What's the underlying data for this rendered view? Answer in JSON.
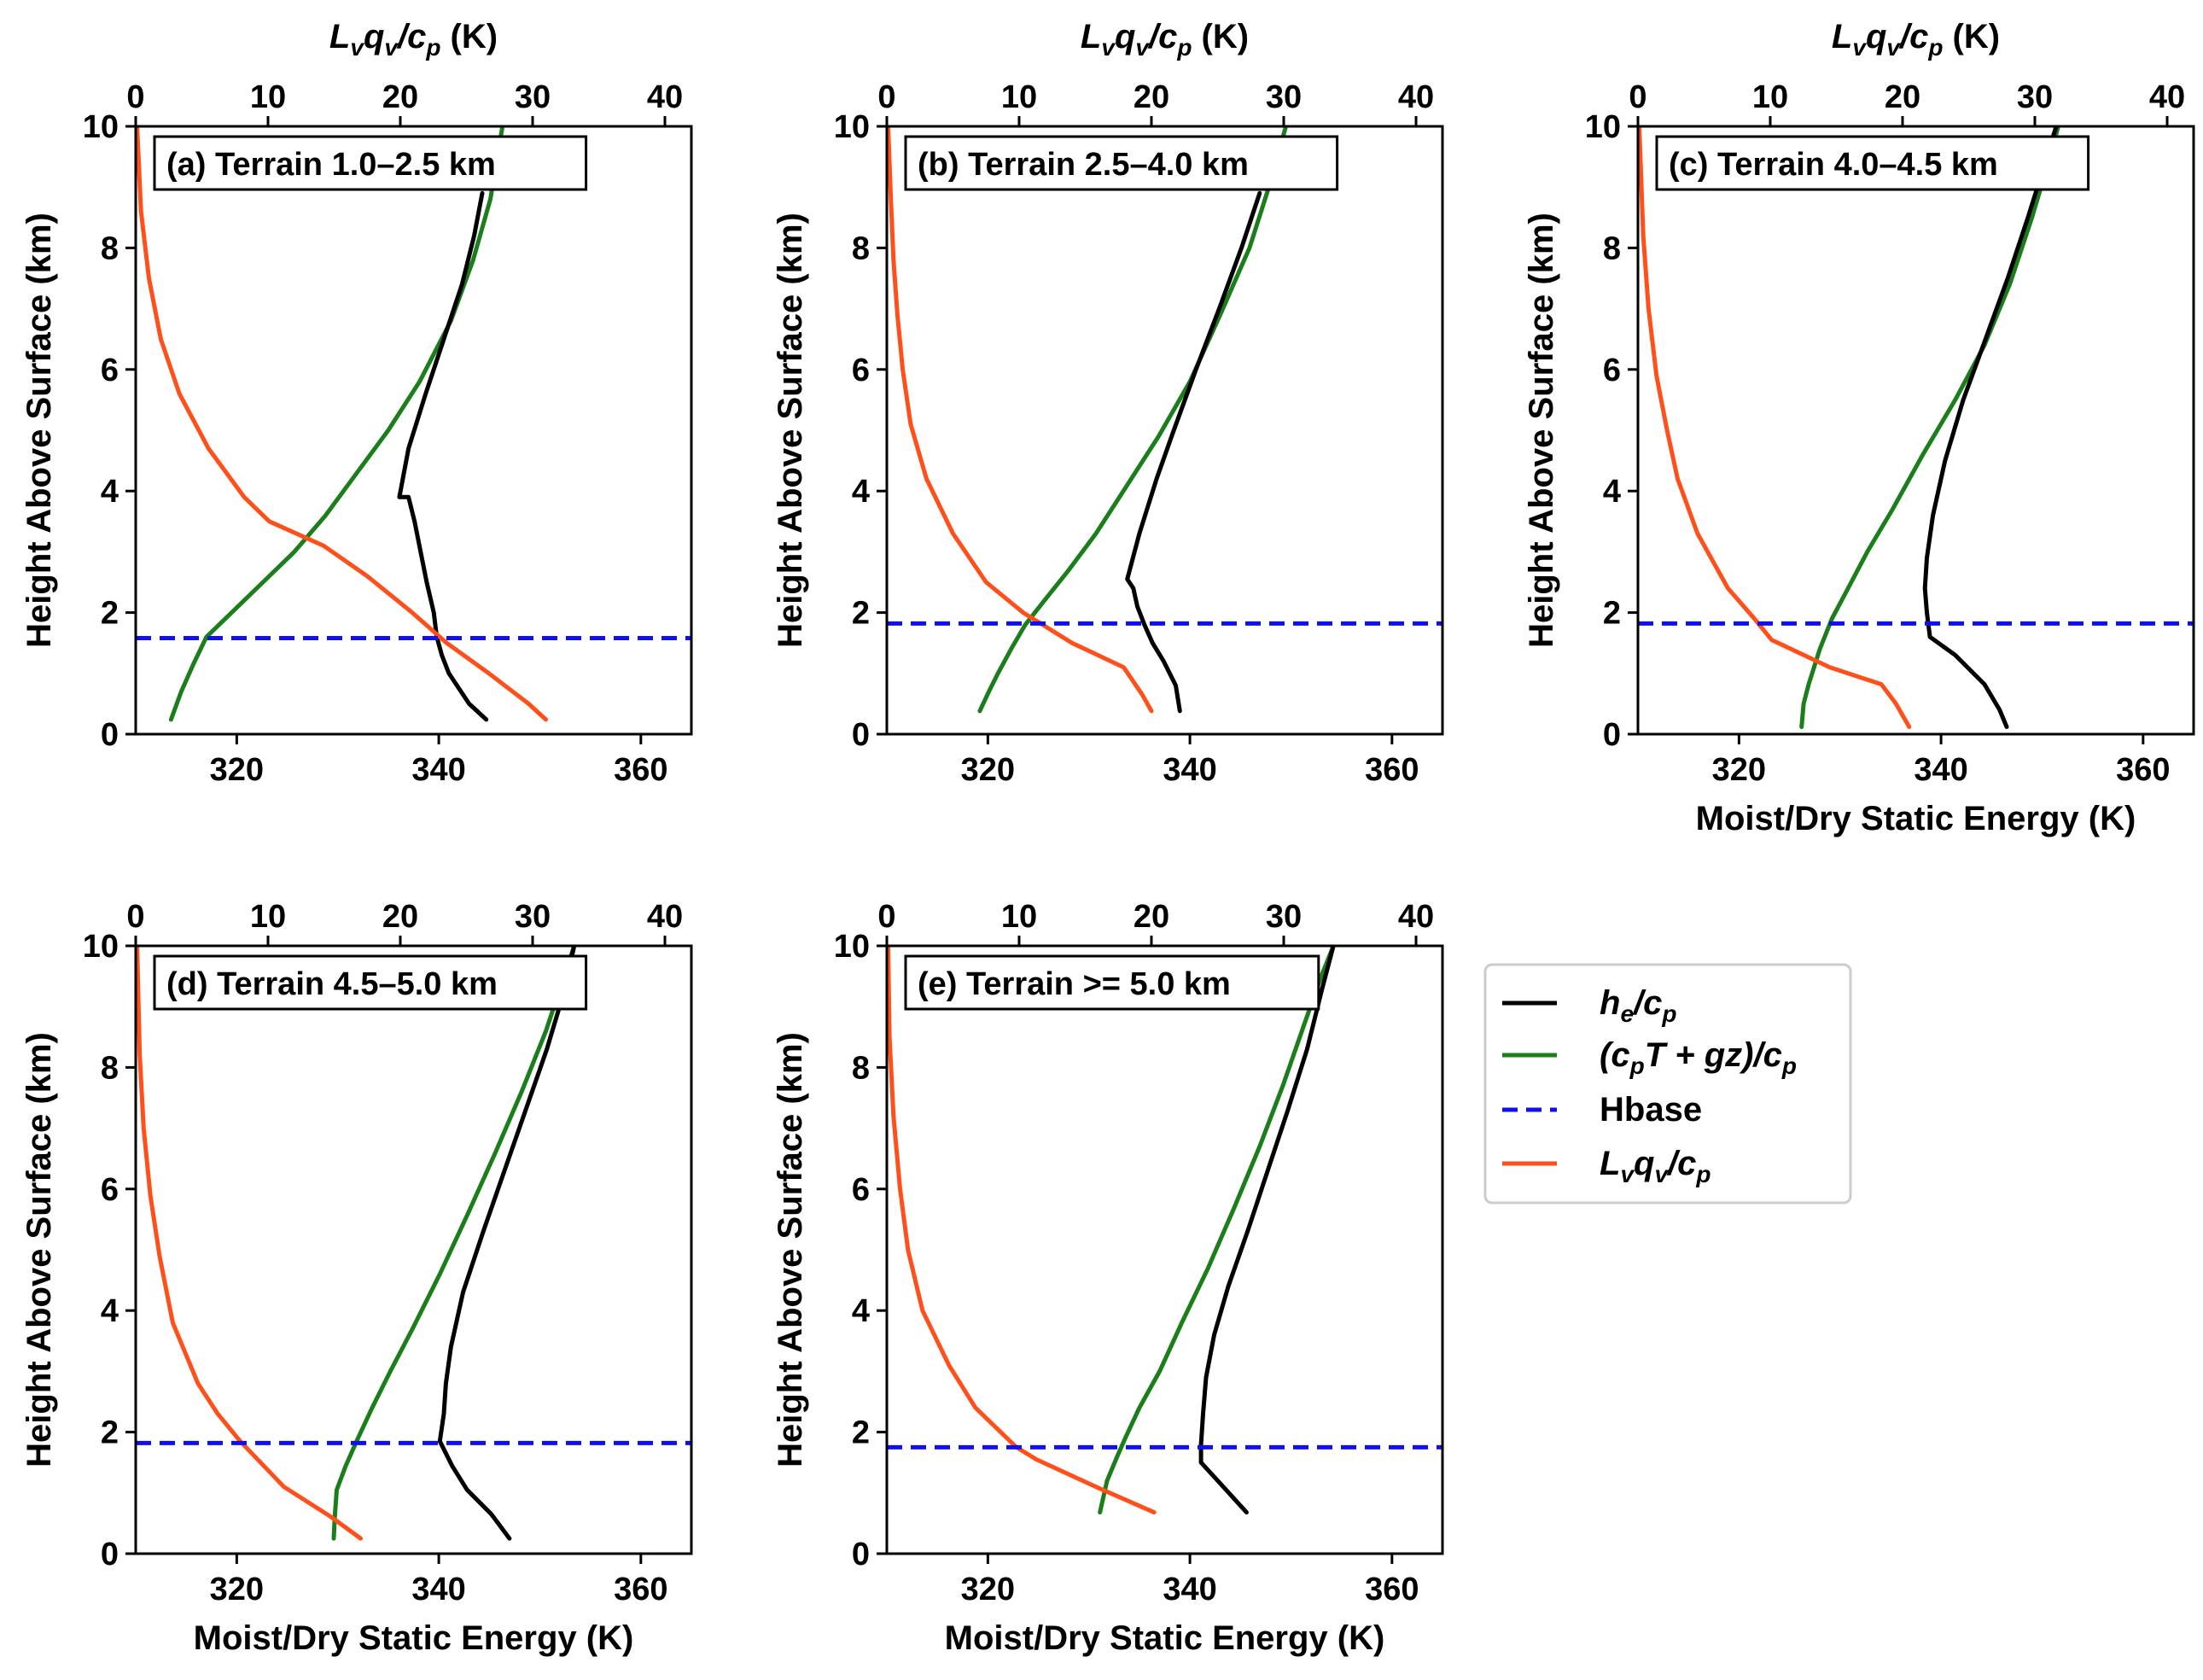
{
  "colors": {
    "he": "#000000",
    "dse": "#1a7f1a",
    "hbase": "#1010ee",
    "lvq": "#ff4f1a"
  },
  "shared_axes": {
    "xlabel": "Moist/Dry Static Energy (K)",
    "ylabel": "Height Above Surface (km)",
    "top_xlabel_main": "L",
    "top_xlabel_sub": "v",
    "top_xlabel_q": "q",
    "top_xlabel_q_sub": "v",
    "top_xlabel_div": "/c",
    "top_xlabel_div_sub": "p",
    "top_xlabel_units": " (K)",
    "xlim": [
      310,
      365
    ],
    "xticks": [
      "320",
      "340",
      "360"
    ],
    "xtick_values": [
      320,
      340,
      360
    ],
    "top_xlim": [
      0,
      42
    ],
    "top_xticks": [
      "0",
      "10",
      "20",
      "30",
      "40"
    ],
    "top_xtick_values": [
      0,
      10,
      20,
      30,
      40
    ],
    "ylim": [
      0,
      10
    ],
    "yticks": [
      "0",
      "2",
      "4",
      "6",
      "8",
      "10"
    ],
    "ytick_values": [
      0,
      2,
      4,
      6,
      8,
      10
    ]
  },
  "legend": {
    "he_a": "h",
    "he_a_sub": "e",
    "he_b": "/c",
    "he_b_sub": "p",
    "dse_a": "(c",
    "dse_a_sub": "p",
    "dse_b": "T + gz)/c",
    "dse_b_sub": "p",
    "hbase": "Hbase",
    "lvq_a": "L",
    "lvq_a_sub": "v",
    "lvq_b": "q",
    "lvq_b_sub": "v",
    "lvq_c": "/c",
    "lvq_c_sub": "p"
  },
  "chart_data": [
    {
      "type": "line",
      "title": "(a) Terrain 1.0–2.5 km",
      "show_xlabel": false,
      "hbase_km": 1.58,
      "series": [
        {
          "name": "h_e/c_p",
          "axis": "bottom",
          "x": [
            344.7,
            343,
            341,
            340.3,
            339.8,
            339.5,
            338.8,
            338.2,
            337.6,
            337,
            336.1,
            337,
            338.7,
            340.5,
            342.3,
            343.5,
            344.3
          ],
          "y": [
            0.24,
            0.5,
            1.0,
            1.3,
            1.6,
            2.0,
            2.5,
            3.0,
            3.5,
            3.9,
            3.9,
            4.7,
            5.6,
            6.5,
            7.4,
            8.2,
            8.9
          ]
        },
        {
          "name": "(c_pT+gz)/c_p",
          "axis": "bottom",
          "x": [
            313.5,
            314.5,
            315.7,
            317,
            319.5,
            322.6,
            325.7,
            328.8,
            331.9,
            335,
            338.1,
            341.2,
            343.4,
            345.1,
            346.3
          ],
          "y": [
            0.24,
            0.7,
            1.15,
            1.6,
            2.0,
            2.5,
            3.0,
            3.6,
            4.3,
            5.0,
            5.8,
            6.8,
            7.8,
            8.8,
            10.0
          ]
        },
        {
          "name": "L_vq_v/c_p",
          "axis": "top",
          "x": [
            31.0,
            29.7,
            26.7,
            23.5,
            20.9,
            17.5,
            14.2,
            10.1,
            8.2,
            5.5,
            3.3,
            1.9,
            1.0,
            0.4,
            0.1
          ],
          "y": [
            0.24,
            0.5,
            1.0,
            1.5,
            2.0,
            2.6,
            3.1,
            3.5,
            3.9,
            4.7,
            5.6,
            6.5,
            7.5,
            8.6,
            10.0
          ]
        }
      ]
    },
    {
      "type": "line",
      "title": "(b) Terrain 2.5–4.0 km",
      "show_xlabel": false,
      "hbase_km": 1.82,
      "series": [
        {
          "name": "h_e/c_p",
          "axis": "bottom",
          "x": [
            339.0,
            338.6,
            337.4,
            336.3,
            335.5,
            334.8,
            334.4,
            333.8,
            335.0,
            336.7,
            338.4,
            340.6,
            342.9,
            345.1,
            346.9
          ],
          "y": [
            0.38,
            0.8,
            1.2,
            1.5,
            1.8,
            2.1,
            2.4,
            2.55,
            3.3,
            4.2,
            5.0,
            6.0,
            7.0,
            8.0,
            8.9
          ]
        },
        {
          "name": "(c_pT+gz)/c_p",
          "axis": "bottom",
          "x": [
            319.2,
            320.1,
            321.0,
            322.3,
            323.7,
            325.6,
            328.0,
            330.7,
            333.8,
            336.9,
            340.0,
            343.0,
            345.9,
            348.2,
            349.5
          ],
          "y": [
            0.38,
            0.7,
            1.0,
            1.4,
            1.8,
            2.2,
            2.7,
            3.3,
            4.1,
            4.9,
            5.8,
            6.9,
            8.0,
            9.2,
            10.0
          ]
        },
        {
          "name": "L_vq_v/c_p",
          "axis": "top",
          "x": [
            20.0,
            19.3,
            17.9,
            14.0,
            10.3,
            7.5,
            5.0,
            3.0,
            1.8,
            1.2,
            0.8,
            0.5,
            0.3,
            0.1
          ],
          "y": [
            0.38,
            0.65,
            1.1,
            1.5,
            2.0,
            2.5,
            3.3,
            4.2,
            5.1,
            6.0,
            6.9,
            7.8,
            8.8,
            10.0
          ]
        }
      ]
    },
    {
      "type": "line",
      "title": "(c) Terrain 4.0–4.5 km",
      "show_xlabel": true,
      "hbase_km": 1.82,
      "series": [
        {
          "name": "h_e/c_p",
          "axis": "bottom",
          "x": [
            346.5,
            345.8,
            344.3,
            341.4,
            338.9,
            338.6,
            338.4,
            338.6,
            339.2,
            340.4,
            342.2,
            344.4,
            346.6,
            348.6,
            350.3,
            351.4
          ],
          "y": [
            0.12,
            0.4,
            0.82,
            1.3,
            1.6,
            2.0,
            2.4,
            2.9,
            3.6,
            4.5,
            5.5,
            6.5,
            7.5,
            8.5,
            9.4,
            10.0
          ]
        },
        {
          "name": "(c_pT+gz)/c_p",
          "axis": "bottom",
          "x": [
            326.2,
            326.4,
            326.9,
            328.0,
            329.2,
            330.8,
            332.7,
            335.2,
            338.2,
            341.4,
            344.3,
            346.8,
            349.0,
            350.8,
            351.6
          ],
          "y": [
            0.12,
            0.5,
            0.82,
            1.4,
            1.9,
            2.4,
            3.0,
            3.7,
            4.6,
            5.5,
            6.4,
            7.4,
            8.5,
            9.5,
            10.0
          ]
        },
        {
          "name": "L_vq_v/c_p",
          "axis": "top",
          "x": [
            20.5,
            19.5,
            18.4,
            14.5,
            10.1,
            8.8,
            6.8,
            4.5,
            3.0,
            2.2,
            1.4,
            0.8,
            0.4,
            0.1
          ],
          "y": [
            0.12,
            0.5,
            0.82,
            1.1,
            1.55,
            1.9,
            2.4,
            3.3,
            4.2,
            5.0,
            5.9,
            7.0,
            8.2,
            10.0
          ]
        }
      ]
    },
    {
      "type": "line",
      "title": "(d) Terrain 4.5–5.0 km",
      "show_xlabel": true,
      "hbase_km": 1.82,
      "series": [
        {
          "name": "h_e/c_p",
          "axis": "bottom",
          "x": [
            347.0,
            345.2,
            342.8,
            341.3,
            340.1,
            340.5,
            340.7,
            341.2,
            342.4,
            344.4,
            346.5,
            348.6,
            350.7,
            352.5,
            353.4
          ],
          "y": [
            0.25,
            0.65,
            1.05,
            1.45,
            1.85,
            2.3,
            2.8,
            3.4,
            4.3,
            5.3,
            6.3,
            7.3,
            8.3,
            9.3,
            10.0
          ]
        },
        {
          "name": "(c_pT+gz)/c_p",
          "axis": "bottom",
          "x": [
            329.6,
            329.7,
            329.9,
            330.8,
            332.0,
            333.4,
            335.2,
            337.4,
            340.1,
            342.9,
            345.6,
            348.2,
            350.6,
            352.4,
            353.4
          ],
          "y": [
            0.25,
            0.6,
            1.05,
            1.45,
            1.9,
            2.4,
            3.0,
            3.7,
            4.6,
            5.6,
            6.6,
            7.6,
            8.6,
            9.5,
            10.0
          ]
        },
        {
          "name": "L_vq_v/c_p",
          "axis": "top",
          "x": [
            17.0,
            14.8,
            11.2,
            7.9,
            6.2,
            4.7,
            2.8,
            1.8,
            1.1,
            0.6,
            0.3,
            0.1
          ],
          "y": [
            0.25,
            0.6,
            1.1,
            1.85,
            2.3,
            2.8,
            3.8,
            4.9,
            5.9,
            7.0,
            8.2,
            10.0
          ]
        }
      ]
    },
    {
      "type": "line",
      "title": "(e) Terrain >= 5.0 km",
      "show_xlabel": true,
      "hbase_km": 1.75,
      "series": [
        {
          "name": "h_e/c_p",
          "axis": "bottom",
          "x": [
            345.6,
            343.3,
            341.1,
            341.1,
            341.3,
            341.6,
            342.4,
            343.8,
            345.7,
            347.7,
            349.7,
            351.6,
            353.1,
            354.2
          ],
          "y": [
            0.68,
            1.1,
            1.5,
            1.8,
            2.3,
            2.9,
            3.6,
            4.4,
            5.3,
            6.3,
            7.3,
            8.3,
            9.3,
            10.0
          ]
        },
        {
          "name": "(c_pT+gz)/c_p",
          "axis": "bottom",
          "x": [
            331.1,
            331.8,
            332.8,
            333.6,
            335.0,
            337.0,
            339.2,
            341.8,
            344.4,
            346.9,
            349.2,
            351.3,
            353.0,
            354.2
          ],
          "y": [
            0.68,
            1.2,
            1.6,
            1.9,
            2.4,
            3.0,
            3.8,
            4.7,
            5.7,
            6.7,
            7.7,
            8.7,
            9.5,
            10.0
          ]
        },
        {
          "name": "L_vq_v/c_p",
          "axis": "top",
          "x": [
            20.2,
            15.8,
            11.3,
            9.8,
            6.7,
            4.7,
            2.7,
            1.6,
            1.0,
            0.5,
            0.2,
            0.1
          ],
          "y": [
            0.68,
            1.1,
            1.55,
            1.75,
            2.4,
            3.1,
            4.0,
            5.0,
            6.0,
            7.2,
            8.5,
            10.0
          ]
        }
      ]
    }
  ]
}
